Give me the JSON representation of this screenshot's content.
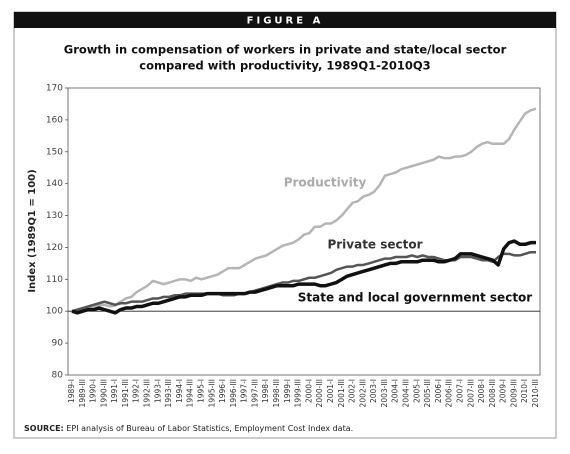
{
  "figure_label": "FIGURE A",
  "chart_data": {
    "type": "line",
    "title": [
      "Growth in compensation of workers in private and state/local sector",
      "compared with productivity, 1989Q1-2010Q3"
    ],
    "ylabel": "Index (1989Q1 = 100)",
    "ylim": [
      80,
      170
    ],
    "yticks": [
      80,
      90,
      100,
      110,
      120,
      130,
      140,
      150,
      160,
      170
    ],
    "reference_line": 100,
    "grid": false,
    "categories": [
      "1989-I",
      null,
      "1989-III",
      null,
      "1990-I",
      null,
      "1990-III",
      null,
      "1991-I",
      null,
      "1991-III",
      null,
      "1992-I",
      null,
      "1992-III",
      null,
      "1993-I",
      null,
      "1993-III",
      null,
      "1994-I",
      null,
      "1994-III",
      null,
      "1995-I",
      null,
      "1995-III",
      null,
      "1996-I",
      null,
      "1996-III",
      null,
      "1997-I",
      null,
      "1997-III",
      null,
      "1998-I",
      null,
      "1998-III",
      null,
      "1999-I",
      null,
      "1999-III",
      null,
      "2000-I",
      null,
      "2000-III",
      null,
      "2001-I",
      null,
      "2001-III",
      null,
      "2002-I",
      null,
      "2002-III",
      null,
      "2003-I",
      null,
      "2003-III",
      null,
      "2004-I",
      null,
      "2004-III",
      null,
      "2005-I",
      null,
      "2005-III",
      null,
      "2006-I",
      null,
      "2006-III",
      null,
      "2007-I",
      null,
      "2007-III",
      null,
      "2008-I",
      null,
      "2008-III",
      null,
      "2009-I",
      null,
      "2009-III",
      null,
      "2010-I",
      null,
      "2010-III"
    ],
    "series": [
      {
        "name": "Productivity",
        "color": "#b5b5b5",
        "width": 2.5,
        "values": [
          100,
          100.3,
          100.8,
          101.2,
          101.5,
          101.8,
          102,
          101.5,
          101.8,
          103,
          104,
          104.5,
          106,
          107,
          108,
          109.5,
          109,
          108.5,
          109,
          109.5,
          110,
          110,
          109.5,
          110.5,
          110,
          110.5,
          111,
          111.5,
          112.5,
          113.5,
          113.5,
          113.5,
          114.5,
          115.5,
          116.5,
          117,
          117.5,
          118.5,
          119.5,
          120.5,
          121,
          121.5,
          122.5,
          124,
          124.5,
          126.5,
          126.5,
          127.5,
          127.5,
          128.5,
          130,
          132,
          134,
          134.5,
          136,
          136.5,
          137.5,
          139.5,
          142.5,
          143,
          143.5,
          144.5,
          145,
          145.5,
          146,
          146.5,
          147,
          147.5,
          148.5,
          148,
          148,
          148.5,
          148.5,
          149,
          150,
          151.5,
          152.5,
          153,
          152.5,
          152.5,
          152.5,
          154,
          157,
          159.5,
          162,
          163,
          163.5
        ]
      },
      {
        "name": "Private sector",
        "color": "#555555",
        "width": 2.5,
        "values": [
          100,
          100.5,
          101,
          101.5,
          102,
          102.5,
          103,
          102.5,
          102,
          102.5,
          102.5,
          103,
          103,
          103,
          103.5,
          104,
          104,
          104.5,
          104.5,
          105,
          105,
          105.5,
          105.5,
          105.5,
          105.5,
          105.5,
          105.5,
          105.5,
          105,
          105,
          105,
          105.5,
          105.5,
          106,
          106.5,
          107,
          107.5,
          108,
          108.5,
          109,
          109,
          109.5,
          109.5,
          110,
          110.5,
          110.5,
          111,
          111.5,
          112,
          113,
          113.5,
          114,
          114,
          114.5,
          114.5,
          115,
          115.5,
          116,
          116.5,
          116.5,
          117,
          117,
          117,
          117.5,
          117,
          117.5,
          117,
          117,
          116.5,
          116,
          116,
          116,
          117,
          117,
          117,
          116.5,
          116,
          116,
          115.5,
          117,
          118,
          118,
          117.5,
          117.5,
          118,
          118.5,
          118.5
        ]
      },
      {
        "name": "State and local government sector",
        "color": "#111111",
        "width": 3.5,
        "values": [
          100,
          99.5,
          100,
          100.5,
          100.5,
          101,
          100.5,
          100,
          99.5,
          100.5,
          101,
          101,
          101.5,
          101.5,
          102,
          102.5,
          102.5,
          103,
          103.5,
          104,
          104.5,
          104.5,
          105,
          105,
          105,
          105.5,
          105.5,
          105.5,
          105.5,
          105.5,
          105.5,
          105.5,
          105.5,
          106,
          106,
          106.5,
          107,
          107.5,
          108,
          108,
          108,
          108,
          108.5,
          108.5,
          108.5,
          108.5,
          108,
          108,
          108.5,
          109,
          110,
          111,
          111.5,
          112,
          112.5,
          113,
          113.5,
          114,
          114.5,
          115,
          115,
          115.5,
          115.5,
          115.5,
          115.5,
          116,
          116,
          116,
          115.5,
          115.5,
          116,
          116.5,
          118,
          118,
          118,
          117.5,
          117,
          116.5,
          116,
          114.5,
          119.5,
          121.5,
          122,
          121,
          121,
          121.5,
          121.5
        ]
      }
    ],
    "source_label": "SOURCE:",
    "source": "EPI analysis of Bureau of Labor Statistics, Employment Cost Index data."
  }
}
